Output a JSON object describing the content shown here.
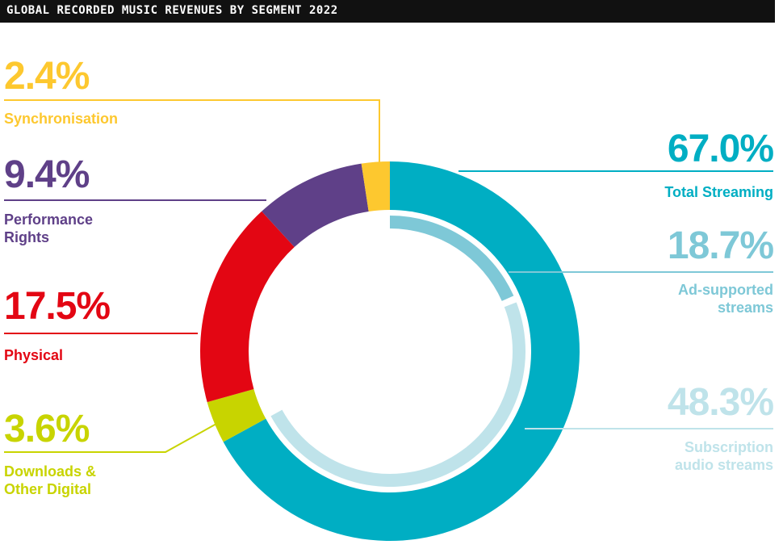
{
  "title": "GLOBAL RECORDED MUSIC REVENUES BY SEGMENT 2022",
  "chart_data": {
    "type": "pie",
    "title": "GLOBAL RECORDED MUSIC REVENUES BY SEGMENT 2022",
    "slices": [
      {
        "name": "Total Streaming",
        "value": 67.0,
        "label": "67.0%",
        "color": "#00aec3",
        "label_lines": [
          "Total Streaming"
        ]
      },
      {
        "name": "Downloads & Other Digital",
        "value": 3.6,
        "label": "3.6%",
        "color": "#c8d400",
        "label_lines": [
          "Downloads &",
          "Other Digital"
        ]
      },
      {
        "name": "Physical",
        "value": 17.5,
        "label": "17.5%",
        "color": "#e30613",
        "label_lines": [
          "Physical"
        ]
      },
      {
        "name": "Performance Rights",
        "value": 9.4,
        "label": "9.4%",
        "color": "#5f4088",
        "label_lines": [
          "Performance",
          "Rights"
        ]
      },
      {
        "name": "Synchronisation",
        "value": 2.4,
        "label": "2.4%",
        "color": "#fdc82f",
        "label_lines": [
          "Synchronisation"
        ]
      }
    ],
    "sub_segments": [
      {
        "name": "Ad-supported streams",
        "value": 18.7,
        "label": "18.7%",
        "color": "#7ec8d7",
        "label_lines": [
          "Ad-supported",
          "streams"
        ]
      },
      {
        "name": "Subscription audio streams",
        "value": 48.3,
        "label": "48.3%",
        "color": "#bfe3ea",
        "label_lines": [
          "Subscription",
          "audio streams"
        ]
      }
    ]
  }
}
